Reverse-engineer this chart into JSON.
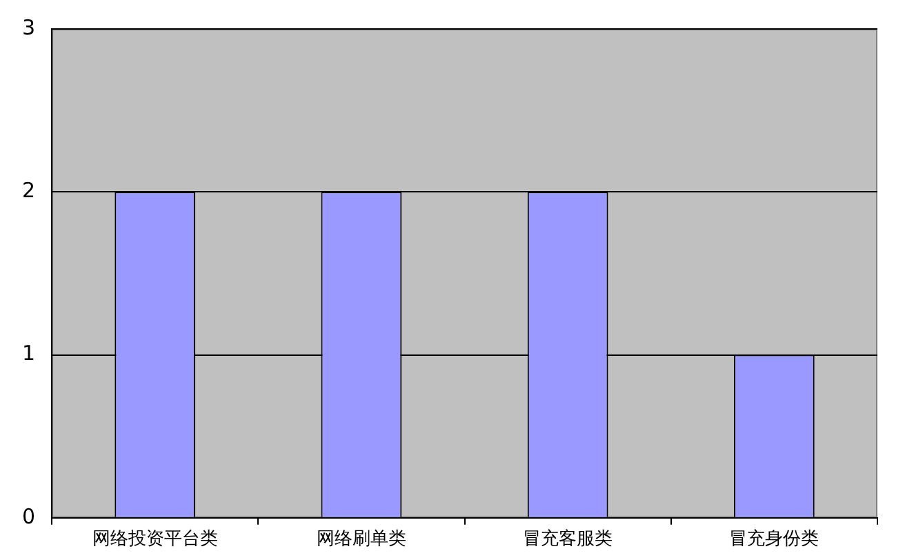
{
  "chart_data": {
    "type": "bar",
    "categories": [
      "网络投资平台类",
      "网络刷单类",
      "冒充客服类",
      "冒充身份类"
    ],
    "values": [
      2,
      2,
      2,
      1
    ],
    "color": "#9999ff",
    "ylim": [
      0,
      3
    ],
    "yticks": [
      0,
      1,
      2,
      3
    ],
    "grid": "y"
  }
}
